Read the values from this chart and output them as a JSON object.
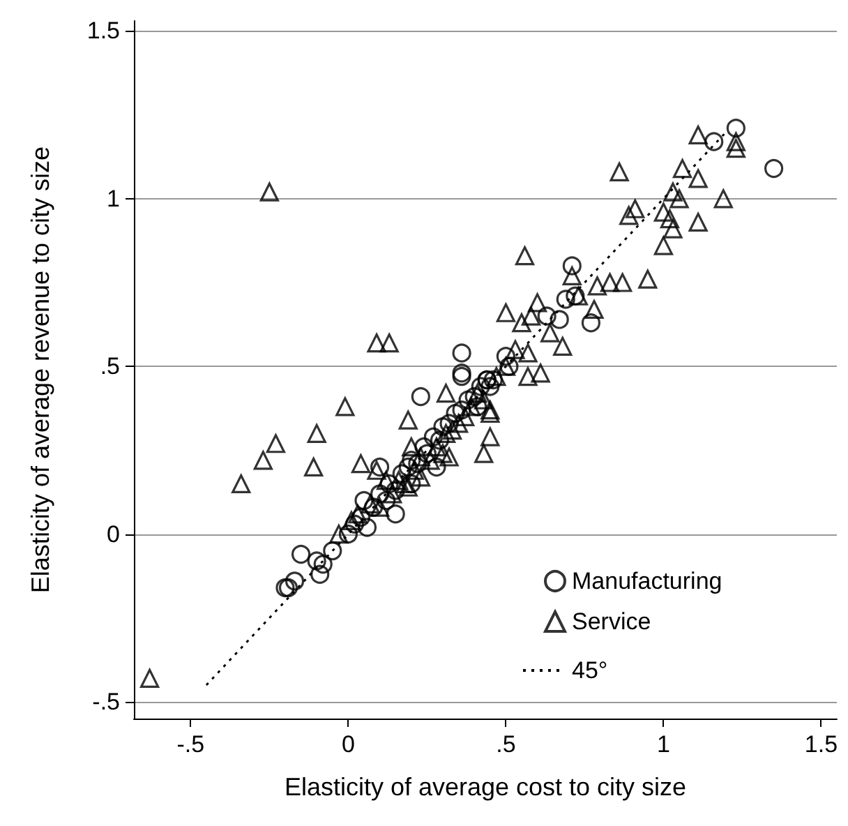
{
  "chart_data": {
    "type": "scatter",
    "xlabel": "Elasticity of average cost to city size",
    "ylabel": "Elasticity of average revenue to city size",
    "xlim": [
      -0.68,
      1.55
    ],
    "ylim": [
      -0.55,
      1.53
    ],
    "xticks": [
      {
        "value": -0.5,
        "label": "-.5"
      },
      0,
      {
        "value": 0.5,
        "label": ".5"
      },
      1,
      1.5
    ],
    "yticks": [
      {
        "value": -0.5,
        "label": "-.5"
      },
      0,
      {
        "value": 0.5,
        "label": ".5"
      },
      1,
      1.5
    ],
    "grid": "y",
    "legend": "bottom right",
    "series": [
      {
        "name": "Manufacturing",
        "color": "#000000",
        "marker": "circle",
        "x": [
          1.23,
          1.16,
          1.35,
          0.71,
          0.72,
          0.69,
          0.67,
          0.77,
          0.63,
          0.5,
          0.36,
          0.44,
          0.46,
          0.51,
          0.23,
          0.36,
          0.36,
          -0.15,
          -0.19,
          -0.17,
          -0.09,
          -0.1,
          -0.2,
          0,
          0.02,
          0.04,
          0.05,
          0.08,
          0.1,
          0.12,
          0.13,
          0.15,
          0.17,
          0.19,
          0.2,
          0.22,
          0.24,
          0.25,
          0.27,
          0.29,
          0.3,
          0.32,
          0.34,
          0.36,
          0.38,
          0.4,
          0.42,
          0.45,
          0.06,
          -0.05,
          -0.08,
          0.15,
          0.2,
          0.28,
          0.1,
          0.44,
          0.41
        ],
        "values": [
          1.21,
          1.17,
          1.09,
          0.8,
          0.71,
          0.7,
          0.64,
          0.63,
          0.65,
          0.53,
          0.47,
          0.46,
          0.46,
          0.5,
          0.41,
          0.54,
          0.48,
          -0.06,
          -0.16,
          -0.14,
          -0.12,
          -0.08,
          -0.16,
          0,
          0.03,
          0.05,
          0.1,
          0.08,
          0.12,
          0.1,
          0.15,
          0.13,
          0.18,
          0.2,
          0.22,
          0.21,
          0.26,
          0.24,
          0.29,
          0.28,
          0.32,
          0.33,
          0.36,
          0.37,
          0.4,
          0.41,
          0.44,
          0.44,
          0.02,
          -0.05,
          -0.09,
          0.06,
          0.15,
          0.2,
          0.2,
          0.46,
          0.38
        ]
      },
      {
        "name": "Service",
        "color": "#000000",
        "marker": "triangle",
        "x": [
          -0.63,
          -0.25,
          0.09,
          0.13,
          -0.01,
          -0.1,
          -0.23,
          -0.27,
          -0.11,
          0.04,
          -0.34,
          0.31,
          0.19,
          0.45,
          0.45,
          0.43,
          0.32,
          0.23,
          0.19,
          0.09,
          1.11,
          1.23,
          1.23,
          0.86,
          1.06,
          1.11,
          1.03,
          1.05,
          1.19,
          0.91,
          0.89,
          1.0,
          1.02,
          1.11,
          1.03,
          1.0,
          0.56,
          0.95,
          0.87,
          0.83,
          0.79,
          0.71,
          0.5,
          0.55,
          0.6,
          0.58,
          0.73,
          0.78,
          0.64,
          0.68,
          0.53,
          0.57,
          0.61,
          0.57,
          0.45,
          0.01,
          0.03,
          0.07,
          0.1,
          0.14,
          0.16,
          0.18,
          0.21,
          0.23,
          0.26,
          0.28,
          0.31,
          0.33,
          0.35,
          0.37,
          0.39,
          0.41,
          0.43,
          0.47,
          0.5,
          -0.03,
          0.12,
          0.2,
          0.3
        ],
        "values": [
          -0.43,
          1.02,
          0.57,
          0.57,
          0.38,
          0.3,
          0.27,
          0.22,
          0.2,
          0.21,
          0.15,
          0.42,
          0.34,
          0.36,
          0.29,
          0.24,
          0.23,
          0.17,
          0.14,
          0.19,
          1.19,
          1.17,
          1.15,
          1.08,
          1.09,
          1.06,
          1.02,
          1.0,
          1.0,
          0.97,
          0.95,
          0.96,
          0.94,
          0.93,
          0.91,
          0.86,
          0.83,
          0.76,
          0.75,
          0.75,
          0.74,
          0.77,
          0.66,
          0.63,
          0.69,
          0.65,
          0.71,
          0.67,
          0.6,
          0.56,
          0.55,
          0.54,
          0.48,
          0.47,
          0.37,
          0.04,
          0.06,
          0.09,
          0.08,
          0.12,
          0.16,
          0.15,
          0.19,
          0.23,
          0.22,
          0.26,
          0.3,
          0.31,
          0.33,
          0.35,
          0.38,
          0.42,
          0.4,
          0.47,
          0.5,
          0,
          0.16,
          0.26,
          0.24
        ]
      },
      {
        "name": "45°",
        "type": "line",
        "color": "#000000",
        "marker": "none",
        "line_style": "dotted",
        "x": [
          -0.45,
          1.2
        ],
        "values": [
          -0.45,
          1.2
        ]
      }
    ]
  }
}
